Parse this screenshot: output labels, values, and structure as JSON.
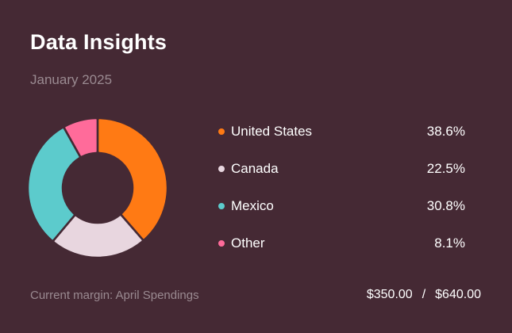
{
  "header": {
    "title": "Data Insights",
    "subtitle": "January 2025"
  },
  "chart_data": {
    "type": "pie",
    "variant": "donut",
    "categories": [
      "United States",
      "Canada",
      "Mexico",
      "Other"
    ],
    "values": [
      38.6,
      22.5,
      30.8,
      8.1
    ],
    "value_labels": [
      "38.6%",
      "22.5%",
      "30.8%",
      "8.1%"
    ],
    "colors": [
      "#ff7a14",
      "#e8d6df",
      "#5ccbcc",
      "#ff6b9a"
    ],
    "legend_position": "right"
  },
  "footer": {
    "label": "Current margin: April Spendings",
    "current": "$350.00",
    "separator": "/",
    "total": "$640.00"
  }
}
